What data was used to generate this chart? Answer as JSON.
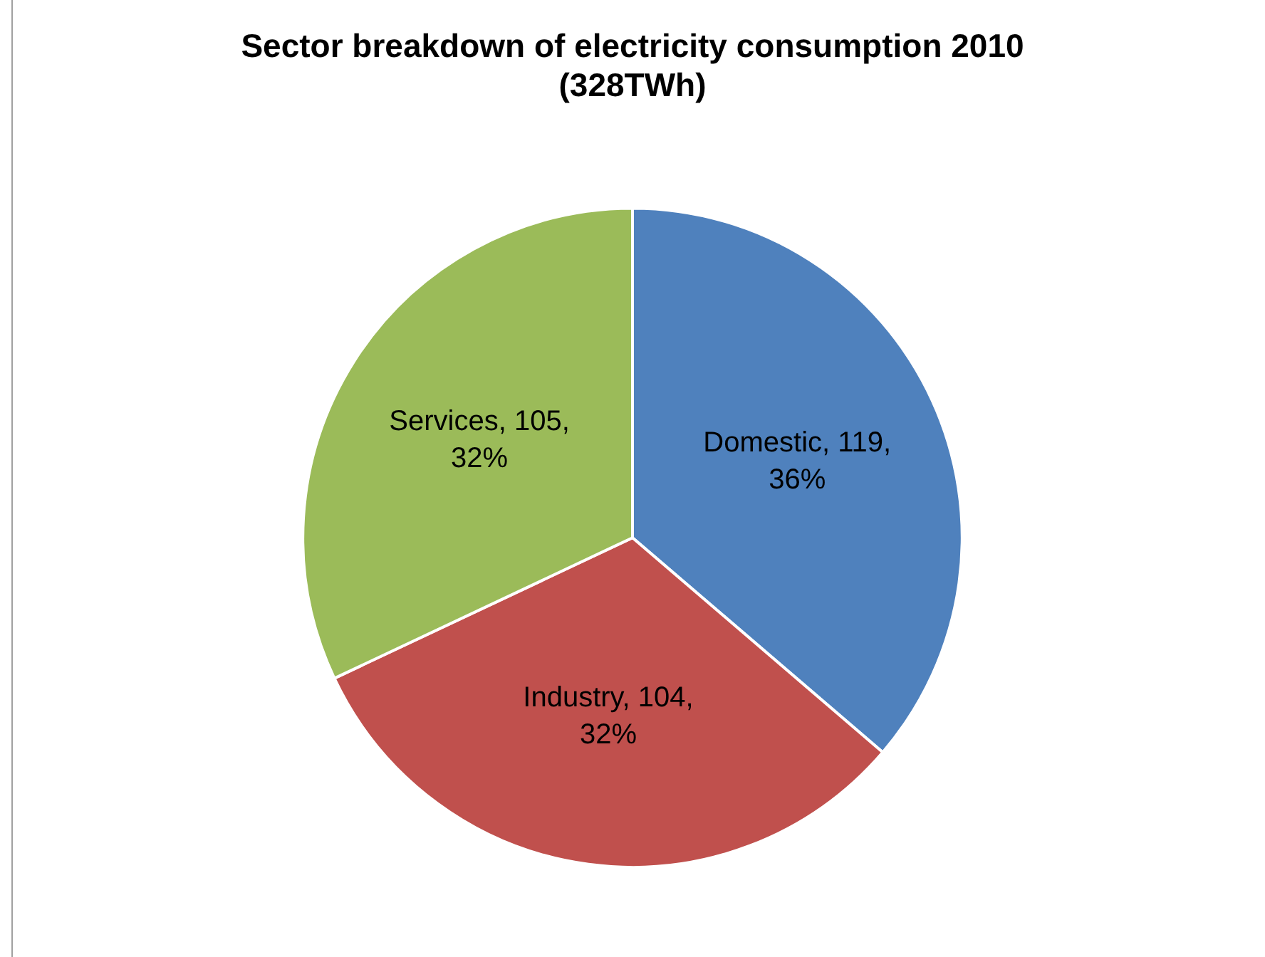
{
  "chart_data": {
    "type": "pie",
    "title": "Sector breakdown of electricity consumption 2010\n(328TWh)",
    "categories": [
      "Domestic",
      "Industry",
      "Services"
    ],
    "values": [
      119,
      104,
      105
    ],
    "colors": [
      "#4f81bd",
      "#c0504d",
      "#9bbb59"
    ],
    "value_labels": [
      "119, 36%",
      "104, 32%",
      "105, 32%"
    ],
    "legend": false
  }
}
